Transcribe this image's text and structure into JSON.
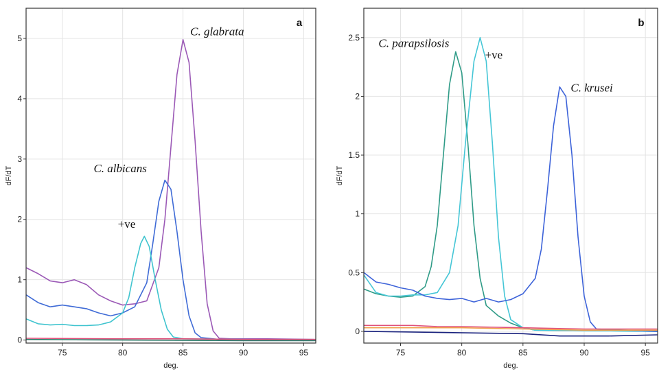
{
  "chart_data": [
    {
      "type": "line",
      "panel_label": "a",
      "xlabel": "deg.",
      "ylabel": "dF/dT",
      "xlim": [
        72,
        96
      ],
      "ylim": [
        -0.05,
        5.5
      ],
      "x_ticks": [
        75,
        80,
        85,
        90,
        95
      ],
      "y_ticks": [
        0,
        1,
        2,
        3,
        4,
        5
      ],
      "grid": true,
      "series": [
        {
          "color": "#9b59b6",
          "label": "C. glabrata",
          "points": [
            [
              72,
              1.2
            ],
            [
              73,
              1.1
            ],
            [
              74,
              0.98
            ],
            [
              75,
              0.95
            ],
            [
              76,
              1.0
            ],
            [
              77,
              0.92
            ],
            [
              78,
              0.75
            ],
            [
              79,
              0.65
            ],
            [
              80,
              0.58
            ],
            [
              81,
              0.6
            ],
            [
              82,
              0.65
            ],
            [
              83,
              1.2
            ],
            [
              83.5,
              2.0
            ],
            [
              84,
              3.2
            ],
            [
              84.5,
              4.4
            ],
            [
              85,
              4.98
            ],
            [
              85.5,
              4.6
            ],
            [
              86,
              3.3
            ],
            [
              86.5,
              1.8
            ],
            [
              87,
              0.6
            ],
            [
              87.5,
              0.15
            ],
            [
              88,
              0.03
            ],
            [
              89,
              0.02
            ],
            [
              92,
              0.02
            ],
            [
              96,
              0.01
            ]
          ]
        },
        {
          "color": "#3f6bd6",
          "label": "C. albicans",
          "points": [
            [
              72,
              0.75
            ],
            [
              73,
              0.62
            ],
            [
              74,
              0.55
            ],
            [
              75,
              0.58
            ],
            [
              76,
              0.55
            ],
            [
              77,
              0.52
            ],
            [
              78,
              0.45
            ],
            [
              79,
              0.4
            ],
            [
              80,
              0.45
            ],
            [
              81,
              0.55
            ],
            [
              82,
              0.95
            ],
            [
              82.5,
              1.6
            ],
            [
              83,
              2.3
            ],
            [
              83.5,
              2.65
            ],
            [
              84,
              2.5
            ],
            [
              84.5,
              1.8
            ],
            [
              85,
              1.0
            ],
            [
              85.5,
              0.4
            ],
            [
              86,
              0.12
            ],
            [
              86.5,
              0.04
            ],
            [
              88,
              0.01
            ],
            [
              96,
              0.0
            ]
          ]
        },
        {
          "color": "#40c4cf",
          "label": "+ve",
          "points": [
            [
              72,
              0.35
            ],
            [
              73,
              0.27
            ],
            [
              74,
              0.25
            ],
            [
              75,
              0.26
            ],
            [
              76,
              0.24
            ],
            [
              77,
              0.24
            ],
            [
              78,
              0.25
            ],
            [
              79,
              0.3
            ],
            [
              80,
              0.45
            ],
            [
              80.5,
              0.7
            ],
            [
              81,
              1.2
            ],
            [
              81.5,
              1.6
            ],
            [
              81.8,
              1.72
            ],
            [
              82.2,
              1.55
            ],
            [
              82.7,
              1.0
            ],
            [
              83.2,
              0.5
            ],
            [
              83.7,
              0.18
            ],
            [
              84.2,
              0.05
            ],
            [
              85,
              0.02
            ],
            [
              96,
              0.0
            ]
          ]
        },
        {
          "color": "#e0507a",
          "label": "",
          "points": [
            [
              72,
              0.03
            ],
            [
              80,
              0.02
            ],
            [
              85,
              0.02
            ],
            [
              90,
              0.01
            ],
            [
              96,
              0.01
            ]
          ]
        },
        {
          "color": "#2e7d6b",
          "label": "",
          "points": [
            [
              72,
              0.01
            ],
            [
              80,
              0.0
            ],
            [
              90,
              -0.01
            ],
            [
              96,
              -0.01
            ]
          ]
        }
      ],
      "annotations": [
        {
          "text": "C. glabrata",
          "italic": true,
          "x": 85.6,
          "y": 5.05
        },
        {
          "text": "C. albicans",
          "italic": true,
          "x": 77.6,
          "y": 2.78
        },
        {
          "text": "+ve",
          "italic": false,
          "x": 79.6,
          "y": 1.86
        }
      ]
    },
    {
      "type": "line",
      "panel_label": "b",
      "xlabel": "deg.",
      "ylabel": "dF/dT",
      "xlim": [
        72,
        96
      ],
      "ylim": [
        -0.1,
        2.75
      ],
      "x_ticks": [
        75,
        80,
        85,
        90,
        95
      ],
      "y_ticks": [
        0,
        0.5,
        1,
        1.5,
        2,
        2.5
      ],
      "y_tick_labels": [
        "0",
        "0.5",
        "1",
        "1.5",
        "2",
        "2.5"
      ],
      "grid": true,
      "series": [
        {
          "color": "#2f9b87",
          "label": "C. parapsilosis",
          "points": [
            [
              72,
              0.36
            ],
            [
              73,
              0.32
            ],
            [
              74,
              0.3
            ],
            [
              75,
              0.29
            ],
            [
              76,
              0.3
            ],
            [
              77,
              0.38
            ],
            [
              77.5,
              0.55
            ],
            [
              78,
              0.9
            ],
            [
              78.5,
              1.5
            ],
            [
              79,
              2.1
            ],
            [
              79.5,
              2.38
            ],
            [
              80,
              2.2
            ],
            [
              80.5,
              1.6
            ],
            [
              81,
              0.9
            ],
            [
              81.5,
              0.45
            ],
            [
              82,
              0.22
            ],
            [
              83,
              0.13
            ],
            [
              84,
              0.07
            ],
            [
              85,
              0.03
            ],
            [
              86,
              0.01
            ],
            [
              96,
              0.0
            ]
          ]
        },
        {
          "color": "#45c6d6",
          "label": "+ve",
          "points": [
            [
              72,
              0.48
            ],
            [
              73,
              0.33
            ],
            [
              74,
              0.3
            ],
            [
              75,
              0.3
            ],
            [
              76,
              0.31
            ],
            [
              77,
              0.31
            ],
            [
              78,
              0.33
            ],
            [
              79,
              0.5
            ],
            [
              79.7,
              0.9
            ],
            [
              80.3,
              1.6
            ],
            [
              81,
              2.3
            ],
            [
              81.5,
              2.5
            ],
            [
              82,
              2.3
            ],
            [
              82.5,
              1.6
            ],
            [
              83,
              0.8
            ],
            [
              83.5,
              0.3
            ],
            [
              84,
              0.1
            ],
            [
              85,
              0.03
            ],
            [
              86,
              0.01
            ],
            [
              96,
              0.0
            ]
          ]
        },
        {
          "color": "#3d63d9",
          "label": "C. krusei",
          "points": [
            [
              72,
              0.5
            ],
            [
              73,
              0.42
            ],
            [
              74,
              0.4
            ],
            [
              75,
              0.37
            ],
            [
              76,
              0.35
            ],
            [
              77,
              0.3
            ],
            [
              78,
              0.28
            ],
            [
              79,
              0.27
            ],
            [
              80,
              0.28
            ],
            [
              81,
              0.25
            ],
            [
              82,
              0.28
            ],
            [
              83,
              0.25
            ],
            [
              84,
              0.27
            ],
            [
              85,
              0.32
            ],
            [
              86,
              0.45
            ],
            [
              86.5,
              0.7
            ],
            [
              87,
              1.2
            ],
            [
              87.5,
              1.75
            ],
            [
              88,
              2.08
            ],
            [
              88.5,
              2.0
            ],
            [
              89,
              1.5
            ],
            [
              89.5,
              0.8
            ],
            [
              90,
              0.3
            ],
            [
              90.5,
              0.08
            ],
            [
              91,
              0.02
            ],
            [
              96,
              0.0
            ]
          ]
        },
        {
          "color": "#e0507a",
          "label": "",
          "points": [
            [
              72,
              0.05
            ],
            [
              76,
              0.05
            ],
            [
              78,
              0.04
            ],
            [
              80,
              0.04
            ],
            [
              85,
              0.03
            ],
            [
              90,
              0.02
            ],
            [
              96,
              0.02
            ]
          ]
        },
        {
          "color": "#f0a04b",
          "label": "",
          "points": [
            [
              72,
              0.03
            ],
            [
              80,
              0.03
            ],
            [
              85,
              0.02
            ],
            [
              90,
              0.01
            ],
            [
              96,
              0.01
            ]
          ]
        },
        {
          "color": "#1a237e",
          "label": "",
          "points": [
            [
              72,
              0.0
            ],
            [
              85,
              -0.02
            ],
            [
              88,
              -0.04
            ],
            [
              92,
              -0.04
            ],
            [
              96,
              -0.03
            ]
          ]
        }
      ],
      "annotations": [
        {
          "text": "C. parapsilosis",
          "italic": true,
          "x": 73.2,
          "y": 2.42
        },
        {
          "text": "+ve",
          "italic": false,
          "x": 81.9,
          "y": 2.32
        },
        {
          "text": "C. krusei",
          "italic": true,
          "x": 88.9,
          "y": 2.04
        }
      ]
    }
  ]
}
